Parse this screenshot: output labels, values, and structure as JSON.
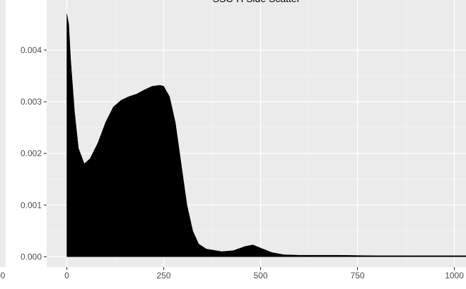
{
  "chart_data": [
    {
      "type": "area",
      "title": "SSC-H Side Scatter",
      "x": [
        0,
        5,
        10,
        20,
        30,
        45,
        60,
        80,
        100,
        120,
        140,
        160,
        180,
        200,
        220,
        240,
        250,
        265,
        280,
        295,
        310,
        325,
        340,
        360,
        400,
        430,
        460,
        480,
        500,
        530,
        560,
        600,
        700,
        800,
        900,
        1030
      ],
      "y": [
        0.0047,
        0.0045,
        0.0038,
        0.0028,
        0.0021,
        0.0018,
        0.0019,
        0.0022,
        0.0026,
        0.0029,
        0.00303,
        0.0031,
        0.00315,
        0.00323,
        0.0033,
        0.00332,
        0.0033,
        0.0031,
        0.0026,
        0.0018,
        0.001,
        0.0005,
        0.00025,
        0.00015,
        0.0001,
        0.00012,
        0.0002,
        0.00023,
        0.00017,
        8e-05,
        4e-05,
        3e-05,
        3e-05,
        2e-05,
        2e-05,
        2e-05
      ],
      "color": "#000000",
      "xlim": [
        -52,
        1030
      ],
      "ylim": [
        -0.0002,
        0.00497
      ],
      "xticks": [
        0,
        250,
        500,
        750,
        1000
      ],
      "yticks": [
        {
          "value": 0,
          "label": "0.000"
        },
        {
          "value": 0.001,
          "label": "0.001"
        },
        {
          "value": 0.002,
          "label": "0.002"
        },
        {
          "value": 0.003,
          "label": "0.003"
        },
        {
          "value": 0.004,
          "label": "0.004"
        }
      ],
      "grid": true
    },
    {
      "type": "area",
      "xticks": [
        1000
      ]
    }
  ]
}
